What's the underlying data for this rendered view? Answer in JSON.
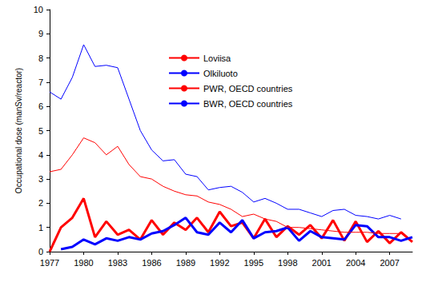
{
  "chart_data": {
    "type": "line",
    "ylabel": "Occupational dose (manSv/reactor)",
    "x": [
      1977,
      1978,
      1979,
      1980,
      1981,
      1982,
      1983,
      1984,
      1985,
      1986,
      1987,
      1988,
      1989,
      1990,
      1991,
      1992,
      1993,
      1994,
      1995,
      1996,
      1997,
      1998,
      1999,
      2000,
      2001,
      2002,
      2003,
      2004,
      2005,
      2006,
      2007,
      2008,
      2009
    ],
    "series": [
      {
        "name": "Loviisa",
        "color": "#ff0000",
        "line_style": "thick",
        "values": [
          0,
          1.0,
          1.4,
          2.2,
          0.6,
          1.25,
          0.7,
          0.9,
          0.5,
          1.3,
          0.7,
          1.2,
          0.9,
          1.4,
          0.8,
          1.65,
          1.05,
          1.2,
          0.55,
          1.35,
          0.6,
          1.05,
          0.7,
          1.1,
          0.55,
          1.3,
          0.45,
          1.25,
          0.4,
          0.85,
          0.35,
          0.8,
          0.4
        ]
      },
      {
        "name": "Olkiluoto",
        "color": "#0000ff",
        "line_style": "thick",
        "values": [
          null,
          0.1,
          0.2,
          0.5,
          0.3,
          0.55,
          0.45,
          0.6,
          0.5,
          0.75,
          0.85,
          1.1,
          1.4,
          0.8,
          0.7,
          1.2,
          0.8,
          1.3,
          0.55,
          0.8,
          0.85,
          1.0,
          0.45,
          0.85,
          0.6,
          0.55,
          0.5,
          1.1,
          1.05,
          0.6,
          0.6,
          0.45,
          0.6
        ]
      },
      {
        "name": "PWR, OECD countries",
        "color": "#ff0000",
        "line_style": "thin",
        "values": [
          3.3,
          3.4,
          4.0,
          4.7,
          4.5,
          4.0,
          4.35,
          3.6,
          3.1,
          3.0,
          2.7,
          2.5,
          2.35,
          2.3,
          2.05,
          1.95,
          1.75,
          1.45,
          1.55,
          1.35,
          1.25,
          1.0,
          1.0,
          0.95,
          0.9,
          0.85,
          0.8,
          0.8,
          0.8,
          0.75,
          0.75,
          0.75,
          null
        ]
      },
      {
        "name": "BWR, OECD countries",
        "color": "#0000ff",
        "line_style": "thin",
        "values": [
          6.6,
          6.3,
          7.2,
          8.55,
          7.65,
          7.7,
          7.6,
          6.3,
          5.0,
          4.2,
          3.75,
          3.8,
          3.2,
          3.1,
          2.55,
          2.65,
          2.7,
          2.45,
          2.05,
          2.2,
          2.0,
          1.75,
          1.75,
          1.6,
          1.45,
          1.7,
          1.75,
          1.5,
          1.45,
          1.35,
          1.5,
          1.35,
          null
        ]
      }
    ],
    "xlim": [
      1977,
      2009
    ],
    "xticks": [
      1977,
      1980,
      1983,
      1986,
      1989,
      1992,
      1995,
      1998,
      2001,
      2004,
      2007
    ],
    "ylim": [
      0,
      10
    ],
    "yticks": [
      0,
      1,
      2,
      3,
      4,
      5,
      6,
      7,
      8,
      9,
      10
    ],
    "grid": false,
    "legend": "top-left"
  }
}
